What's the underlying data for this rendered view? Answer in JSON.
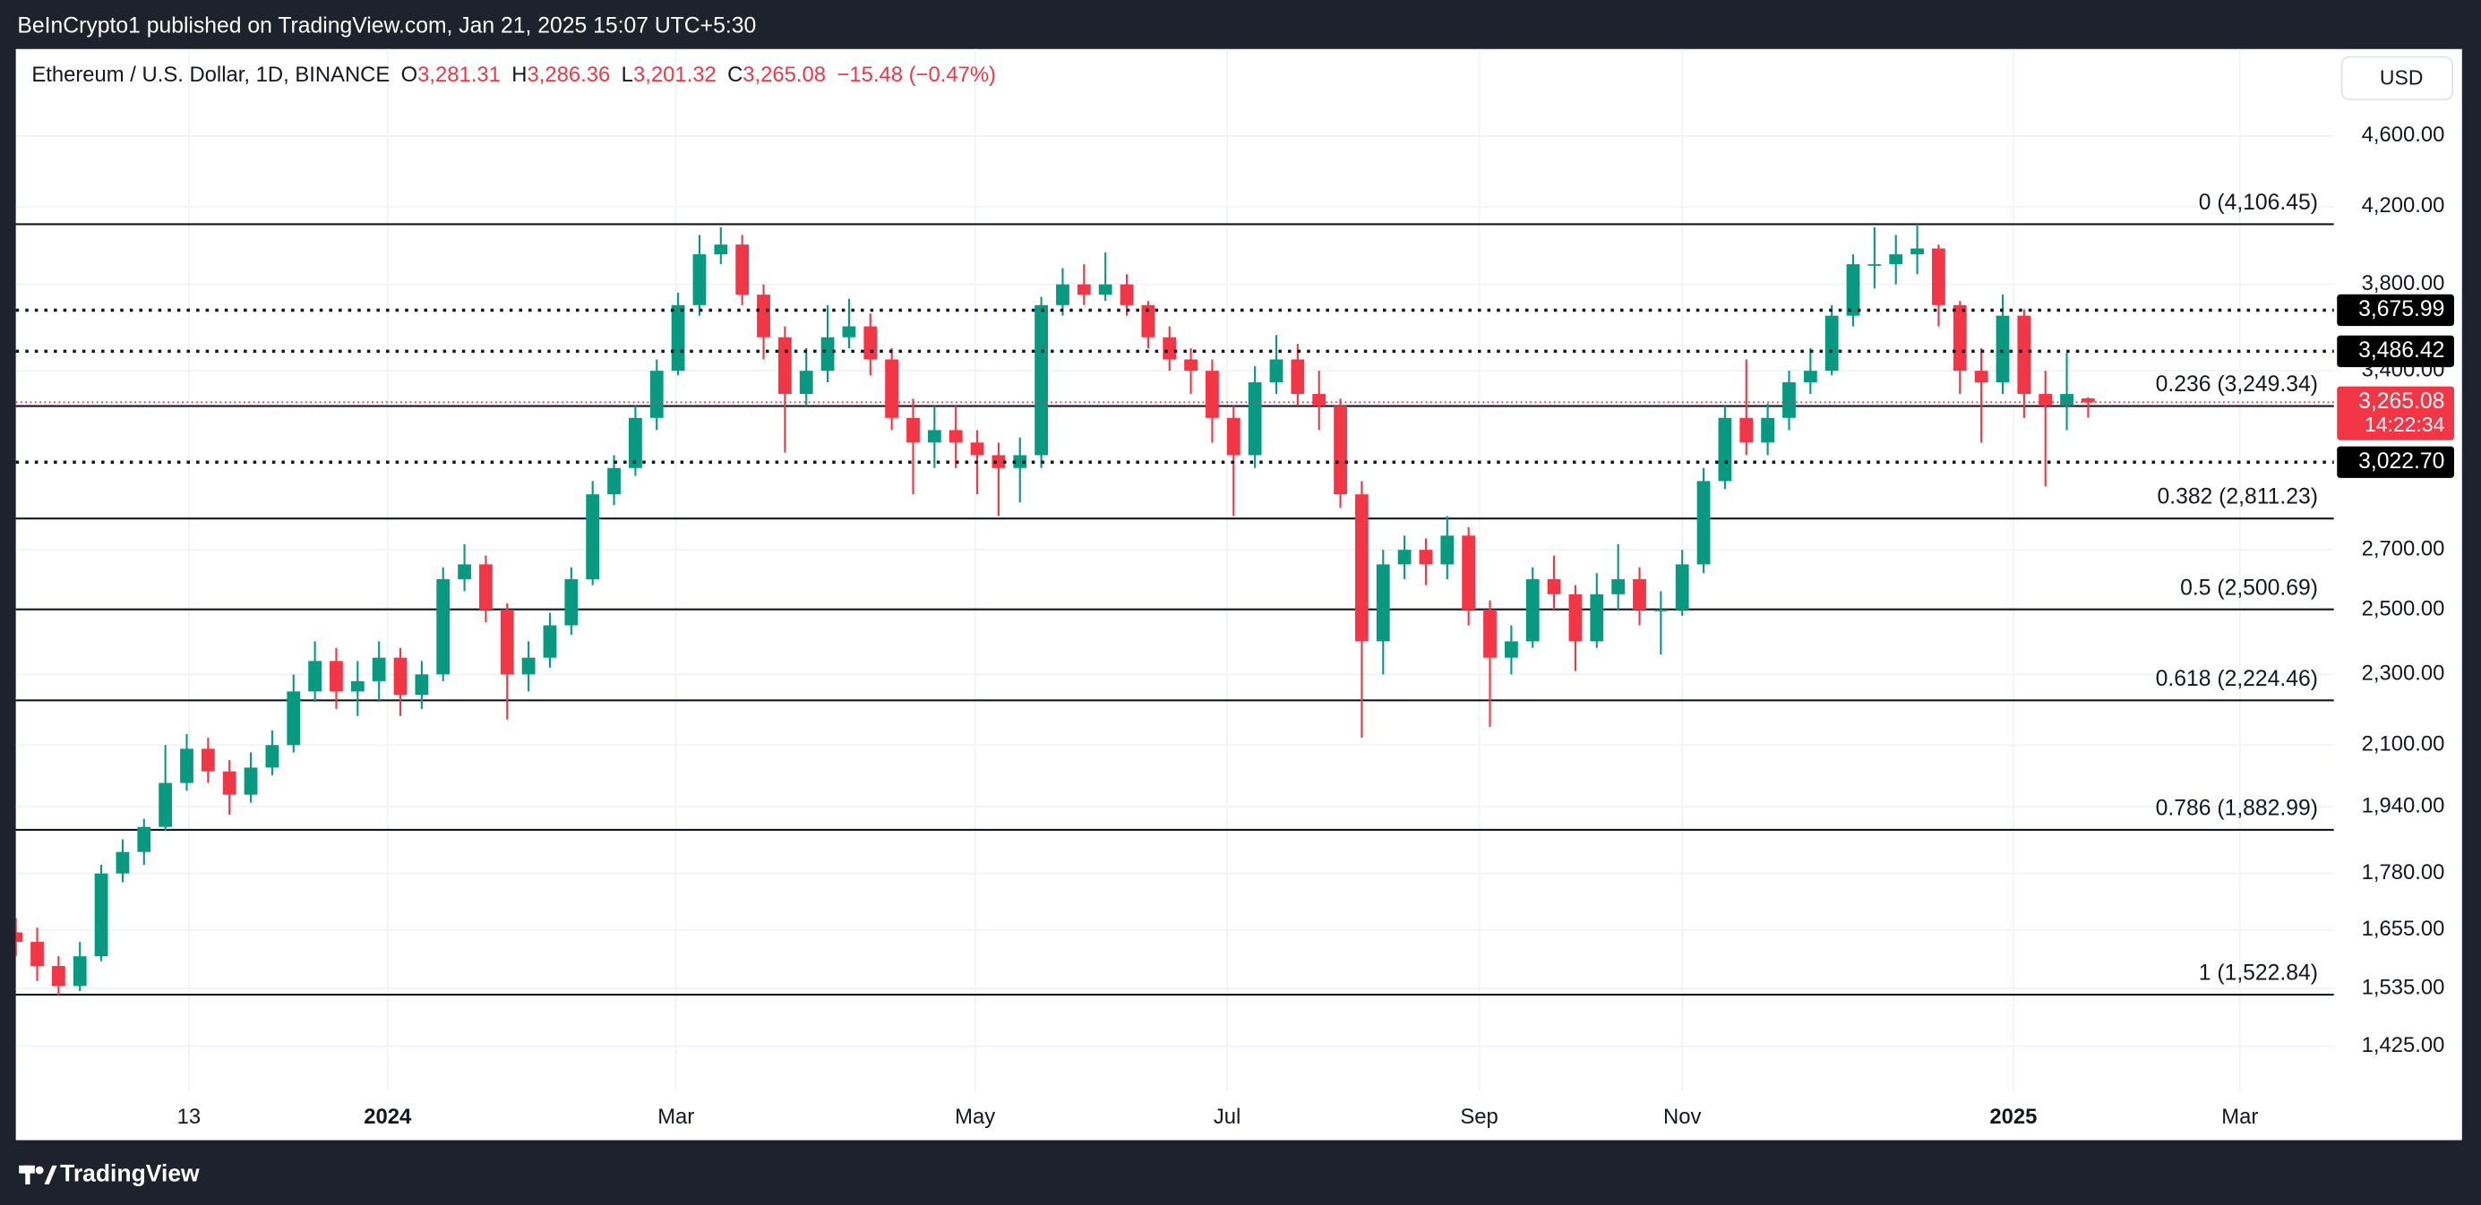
{
  "header": {
    "attribution": "BeInCrypto1 published on TradingView.com, Jan 21, 2025 15:07 UTC+5:30",
    "brand": "TradingView"
  },
  "chart_data": {
    "type": "candlestick",
    "legend": {
      "symbol": "Ethereum / U.S. Dollar, 1D, BINANCE",
      "ohlc": [
        {
          "key": "O",
          "value": "3,281.31"
        },
        {
          "key": "H",
          "value": "3,286.36"
        },
        {
          "key": "L",
          "value": "3,201.32"
        },
        {
          "key": "C",
          "value": "3,265.08"
        }
      ],
      "change": "−15.48 (−0.47%)"
    },
    "currency": "USD",
    "up_color": "#089981",
    "down_color": "#f23645",
    "log_scale": true,
    "grid": true,
    "open": [
      1650,
      1630,
      1580,
      1540,
      1600,
      1780,
      1830,
      1890,
      2000,
      2090,
      2030,
      1970,
      2040,
      2100,
      2250,
      2340,
      2250,
      2280,
      2350,
      2240,
      2300,
      2600,
      2650,
      2500,
      2300,
      2350,
      2450,
      2600,
      2900,
      3000,
      3200,
      3400,
      3700,
      3950,
      4000,
      3750,
      3550,
      3300,
      3400,
      3550,
      3600,
      3450,
      3200,
      3100,
      3150,
      3100,
      3050,
      3000,
      3050,
      3700,
      3800,
      3750,
      3800,
      3700,
      3550,
      3450,
      3400,
      3200,
      3050,
      3350,
      3450,
      3300,
      3250,
      2900,
      2400,
      2650,
      2700,
      2650,
      2750,
      2500,
      2350,
      2400,
      2600,
      2550,
      2400,
      2550,
      2600,
      2500,
      2500,
      2650,
      2950,
      3200,
      3100,
      3200,
      3350,
      3400,
      3650,
      3900,
      3900,
      3950,
      3980,
      3700,
      3400,
      3350,
      3650,
      3300,
      3250,
      3281.31
    ],
    "high": [
      1680,
      1660,
      1600,
      1630,
      1800,
      1860,
      1910,
      2100,
      2130,
      2120,
      2060,
      2080,
      2140,
      2300,
      2400,
      2380,
      2340,
      2400,
      2380,
      2340,
      2640,
      2720,
      2680,
      2520,
      2400,
      2490,
      2640,
      2950,
      3050,
      3250,
      3450,
      3760,
      4050,
      4090,
      4050,
      3800,
      3600,
      3500,
      3700,
      3730,
      3660,
      3500,
      3280,
      3250,
      3250,
      3150,
      3100,
      3120,
      3740,
      3880,
      3900,
      3960,
      3850,
      3720,
      3600,
      3500,
      3450,
      3250,
      3420,
      3560,
      3520,
      3400,
      3280,
      2950,
      2700,
      2750,
      2740,
      2820,
      2780,
      2530,
      2450,
      2640,
      2680,
      2580,
      2620,
      2720,
      2640,
      2560,
      2700,
      3000,
      3250,
      3450,
      3260,
      3400,
      3500,
      3700,
      3950,
      4090,
      4050,
      4106,
      4000,
      3720,
      3500,
      3750,
      3680,
      3400,
      3480,
      3286.36
    ],
    "low": [
      1600,
      1550,
      1522,
      1530,
      1590,
      1760,
      1800,
      1880,
      1980,
      2000,
      1920,
      1950,
      2020,
      2080,
      2220,
      2200,
      2180,
      2220,
      2180,
      2200,
      2280,
      2560,
      2460,
      2170,
      2250,
      2320,
      2420,
      2580,
      2860,
      2970,
      3150,
      3380,
      3650,
      3900,
      3700,
      3450,
      3060,
      3250,
      3350,
      3500,
      3380,
      3150,
      2900,
      3000,
      3000,
      2900,
      2820,
      2870,
      3000,
      3650,
      3700,
      3720,
      3650,
      3500,
      3400,
      3300,
      3100,
      2820,
      3000,
      3300,
      3250,
      3150,
      2850,
      2120,
      2300,
      2600,
      2580,
      2600,
      2450,
      2150,
      2300,
      2380,
      2500,
      2310,
      2380,
      2500,
      2450,
      2360,
      2480,
      2620,
      2920,
      3050,
      3050,
      3150,
      3300,
      3380,
      3600,
      3780,
      3800,
      3850,
      3600,
      3300,
      3100,
      3300,
      3200,
      2930,
      3150,
      3201.32
    ],
    "close": [
      1630,
      1580,
      1540,
      1600,
      1780,
      1830,
      1890,
      2000,
      2090,
      2030,
      1970,
      2040,
      2100,
      2250,
      2340,
      2250,
      2280,
      2350,
      2240,
      2300,
      2600,
      2650,
      2500,
      2300,
      2350,
      2450,
      2600,
      2900,
      3000,
      3200,
      3400,
      3700,
      3950,
      4000,
      3750,
      3550,
      3300,
      3400,
      3550,
      3600,
      3450,
      3200,
      3100,
      3150,
      3100,
      3050,
      3000,
      3050,
      3700,
      3800,
      3750,
      3800,
      3700,
      3550,
      3450,
      3400,
      3200,
      3050,
      3350,
      3450,
      3300,
      3250,
      2900,
      2400,
      2650,
      2700,
      2650,
      2750,
      2500,
      2350,
      2400,
      2600,
      2550,
      2400,
      2550,
      2600,
      2500,
      2500,
      2650,
      2950,
      3200,
      3100,
      3200,
      3350,
      3400,
      3650,
      3900,
      3900,
      3950,
      3980,
      3700,
      3400,
      3350,
      3650,
      3300,
      3250,
      3300,
      3265.08
    ],
    "ylim": [
      1345,
      5145
    ],
    "yticks": [
      {
        "value": 4600,
        "label": "4,600.00"
      },
      {
        "value": 4200,
        "label": "4,200.00"
      },
      {
        "value": 3800,
        "label": "3,800.00"
      },
      {
        "value": 3400,
        "label": "3,400.00"
      },
      {
        "value": 2700,
        "label": "2,700.00"
      },
      {
        "value": 2500,
        "label": "2,500.00"
      },
      {
        "value": 2300,
        "label": "2,300.00"
      },
      {
        "value": 2100,
        "label": "2,100.00"
      },
      {
        "value": 1940,
        "label": "1,940.00"
      },
      {
        "value": 1780,
        "label": "1,780.00"
      },
      {
        "value": 1655,
        "label": "1,655.00"
      },
      {
        "value": 1535,
        "label": "1,535.00"
      },
      {
        "value": 1425,
        "label": "1,425.00"
      }
    ],
    "xlim": [
      0,
      108.5
    ],
    "xticks": [
      {
        "value": 8.1,
        "label": "13"
      },
      {
        "value": 17.4,
        "label": "2024",
        "bold": true
      },
      {
        "value": 30.9,
        "label": "Mar"
      },
      {
        "value": 44.9,
        "label": "May"
      },
      {
        "value": 56.7,
        "label": "Jul"
      },
      {
        "value": 68.5,
        "label": "Sep"
      },
      {
        "value": 78.0,
        "label": "Nov"
      },
      {
        "value": 93.5,
        "label": "2025",
        "bold": true
      },
      {
        "value": 104.1,
        "label": "Mar"
      }
    ],
    "fib_levels": [
      {
        "value": 4106.45,
        "label": "0 (4,106.45)"
      },
      {
        "value": 3249.34,
        "label": "0.236 (3,249.34)"
      },
      {
        "value": 2811.23,
        "label": "0.382 (2,811.23)"
      },
      {
        "value": 2500.69,
        "label": "0.5 (2,500.69)"
      },
      {
        "value": 2224.46,
        "label": "0.618 (2,224.46)"
      },
      {
        "value": 1882.99,
        "label": "0.786 (1,882.99)"
      },
      {
        "value": 1522.84,
        "label": "1 (1,522.84)"
      }
    ],
    "price_lines": [
      {
        "value": 3675.99,
        "label": "3,675.99"
      },
      {
        "value": 3486.42,
        "label": "3,486.42"
      },
      {
        "value": 3022.7,
        "label": "3,022.70"
      }
    ],
    "last_price": {
      "value": 3265.08,
      "label": "3,265.08",
      "countdown": "14:22:34"
    }
  }
}
